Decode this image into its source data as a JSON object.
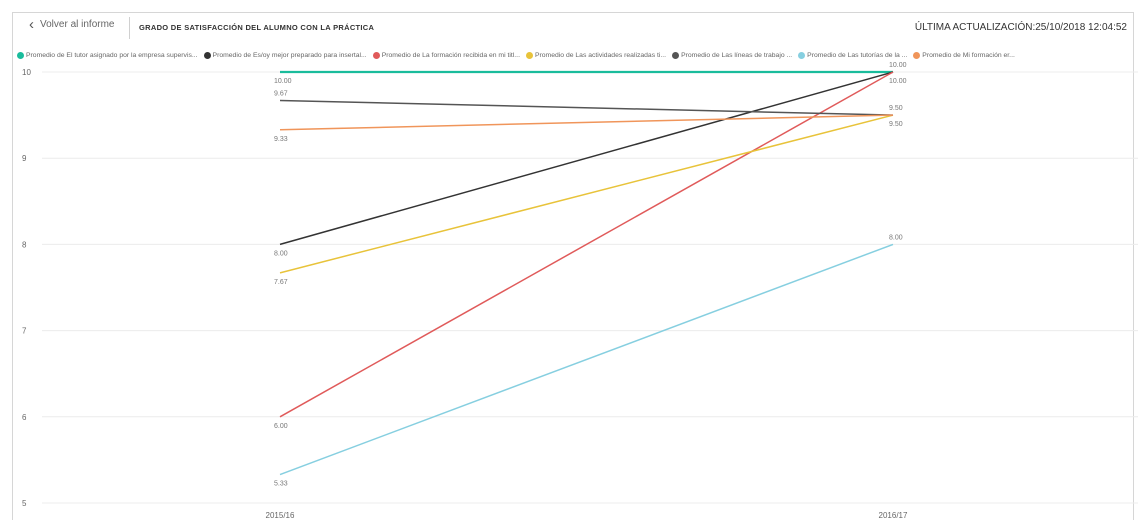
{
  "header": {
    "back_label": "Volver al informe",
    "title": "GRADO DE SATISFACCIÓN DEL ALUMNO CON LA PRÁCTICA",
    "updated": "ÚLTIMA ACTUALIZACIÓN:25/10/2018 12:04:52"
  },
  "chart_data": {
    "type": "line",
    "categories": [
      "2015/16",
      "2016/17"
    ],
    "ylim": [
      5,
      10
    ],
    "yticks": [
      "5",
      "6",
      "7",
      "8",
      "9",
      "10"
    ],
    "grid": true,
    "legend_position": "top",
    "series": [
      {
        "name": "Promedio de El tutor asignado por la empresa supervis...",
        "color": "#1abc9c",
        "values": [
          10.0,
          10.0
        ],
        "labels": [
          "10.00",
          "10.00"
        ]
      },
      {
        "name": "Promedio de Es/oy mejor preparado para insertal...",
        "color": "#333333",
        "values": [
          8.0,
          10.0
        ],
        "labels": [
          "8.00",
          "10.00"
        ]
      },
      {
        "name": "Promedio de La formación recibida en mi titl...",
        "color": "#e05a5a",
        "values": [
          6.0,
          10.0
        ],
        "labels": [
          "6.00",
          "10.00"
        ]
      },
      {
        "name": "Promedio de Las actividades realizadas ti...",
        "color": "#e8c33a",
        "values": [
          7.67,
          9.5
        ],
        "labels": [
          "7.67",
          "9.50"
        ]
      },
      {
        "name": "Promedio de Las líneas de trabajo ...",
        "color": "#555555",
        "values": [
          9.67,
          9.5
        ],
        "labels": [
          "9.67",
          "9.50"
        ]
      },
      {
        "name": "Promedio de Las tutorías de la ...",
        "color": "#86cfe0",
        "values": [
          5.33,
          8.0
        ],
        "labels": [
          "5.33",
          "8.00"
        ]
      },
      {
        "name": "Promedio de Mi formación er...",
        "color": "#f0955a",
        "values": [
          9.33,
          9.5
        ],
        "labels": [
          "9.33",
          "9.50"
        ]
      }
    ],
    "point_labels": [
      {
        "text": "10.00",
        "category": 0,
        "value": 10.0,
        "below": true
      },
      {
        "text": "9.67",
        "category": 0,
        "value": 9.67,
        "below": false
      },
      {
        "text": "9.33",
        "category": 0,
        "value": 9.33,
        "below": true
      },
      {
        "text": "8.00",
        "category": 0,
        "value": 8.0,
        "below": true
      },
      {
        "text": "7.67",
        "category": 0,
        "value": 7.67,
        "below": true
      },
      {
        "text": "6.00",
        "category": 0,
        "value": 6.0,
        "below": true
      },
      {
        "text": "5.33",
        "category": 0,
        "value": 5.33,
        "below": true
      },
      {
        "text": "10.00",
        "category": 1,
        "value": 10.0,
        "below": false
      },
      {
        "text": "10.00",
        "category": 1,
        "value": 10.0,
        "below": true
      },
      {
        "text": "9.50",
        "category": 1,
        "value": 9.5,
        "below": false
      },
      {
        "text": "9.50",
        "category": 1,
        "value": 9.5,
        "below": true
      },
      {
        "text": "8.00",
        "category": 1,
        "value": 8.0,
        "below": false
      }
    ]
  }
}
